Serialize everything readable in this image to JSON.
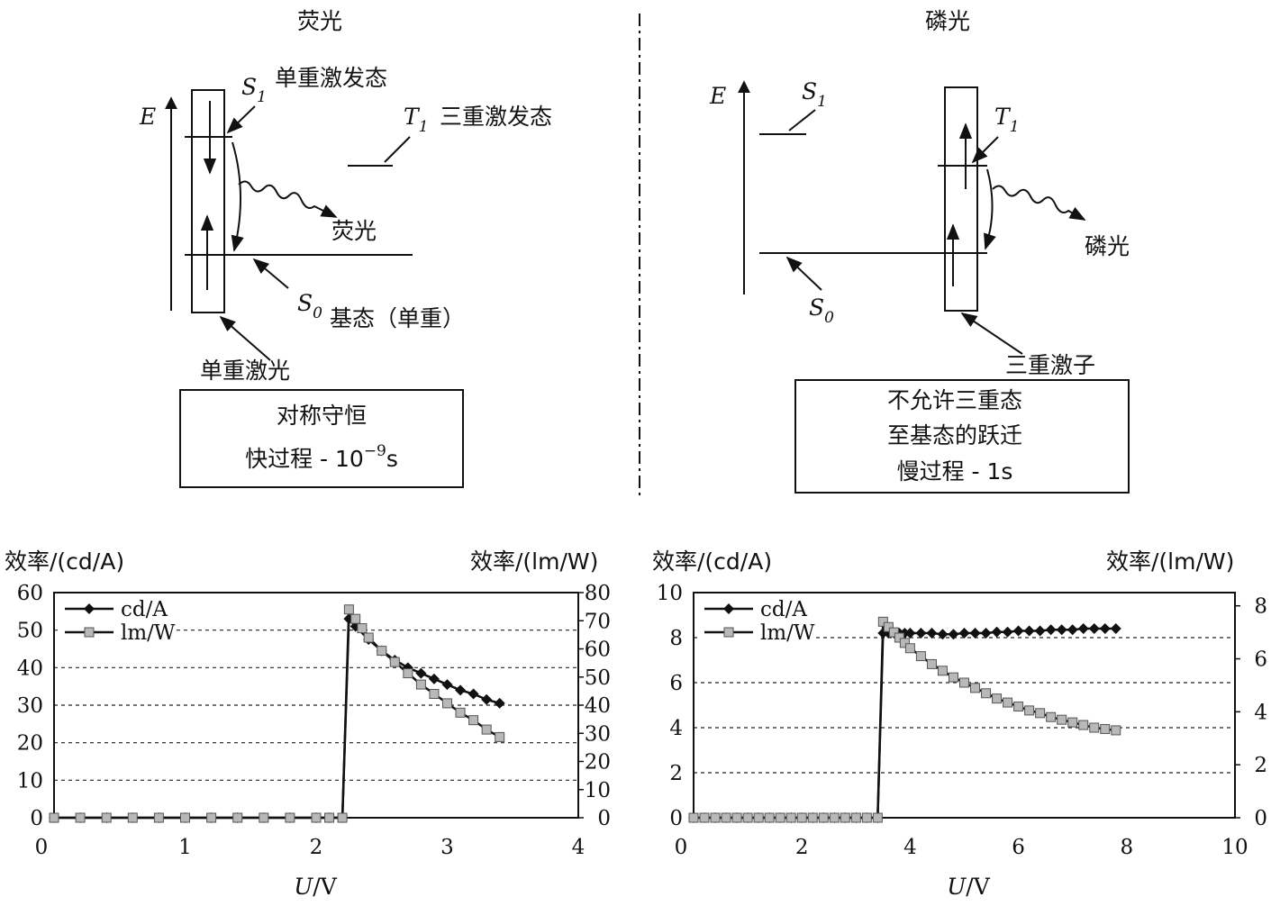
{
  "fluorescence": {
    "title": "荧光",
    "axis_label": "E",
    "s1": {
      "letter": "S",
      "sub": "1"
    },
    "s0": {
      "letter": "S",
      "sub": "0"
    },
    "t1": {
      "letter": "T",
      "sub": "1"
    },
    "singlet_excited": "单重激发态",
    "triplet_excited": "三重激发态",
    "emission": "荧光",
    "ground_state": "基态（单重）",
    "singlet_exciton": "单重激光",
    "box_line1": "对称守恒",
    "box_line2_main": "快过程 - 10",
    "box_line2_exp": "−9",
    "box_line2_unit": "s"
  },
  "phosphorescence": {
    "title": "磷光",
    "axis_label": "E",
    "s1": {
      "letter": "S",
      "sub": "1"
    },
    "s0": {
      "letter": "S",
      "sub": "0"
    },
    "t1": {
      "letter": "T",
      "sub": "1"
    },
    "emission": "磷光",
    "triplet_exciton": "三重激子",
    "box_line1": "不允许三重态",
    "box_line2": "至基态的跃迁",
    "box_line3": "慢过程 - 1s"
  },
  "chart_data": [
    {
      "type": "line",
      "xlabel": "U/V",
      "ylabel": "效率/(cd/A)",
      "y2label": "效率/(lm/W)",
      "xlim": [
        0,
        4
      ],
      "ylim": [
        0,
        60
      ],
      "y2lim": [
        0,
        80
      ],
      "xticks": [
        "0",
        "1",
        "2",
        "3",
        "4"
      ],
      "yticks": [
        "0",
        "10",
        "20",
        "30",
        "40",
        "50",
        "60"
      ],
      "y2ticks": [
        "0",
        "10",
        "20",
        "30",
        "40",
        "50",
        "60",
        "70",
        "80"
      ],
      "grid": "horizontal-dashed",
      "legend": "top-left",
      "series": [
        {
          "name": "cd/A",
          "axis": "left",
          "marker": "diamond",
          "x": [
            0,
            0.2,
            0.4,
            0.6,
            0.8,
            1.0,
            1.2,
            1.4,
            1.6,
            1.8,
            2.0,
            2.1,
            2.2,
            2.25,
            2.3,
            2.4,
            2.5,
            2.6,
            2.7,
            2.8,
            2.9,
            3.0,
            3.1,
            3.2,
            3.3,
            3.4
          ],
          "values": [
            0,
            0,
            0,
            0,
            0,
            0,
            0,
            0,
            0,
            0,
            0,
            0,
            0,
            53,
            51,
            47.5,
            44.5,
            42,
            40,
            38.5,
            37,
            35.5,
            34,
            33,
            31.5,
            30.5
          ]
        },
        {
          "name": "lm/W",
          "axis": "left",
          "marker": "square",
          "x": [
            0,
            0.2,
            0.4,
            0.6,
            0.8,
            1.0,
            1.2,
            1.4,
            1.6,
            1.8,
            2.0,
            2.1,
            2.2,
            2.25,
            2.3,
            2.35,
            2.4,
            2.5,
            2.6,
            2.7,
            2.8,
            2.9,
            3.0,
            3.1,
            3.2,
            3.3,
            3.4
          ],
          "values": [
            0,
            0,
            0,
            0,
            0,
            0,
            0,
            0,
            0,
            0,
            0,
            0,
            0,
            55.5,
            53,
            50.5,
            48,
            44.5,
            41.5,
            38.5,
            35.5,
            33,
            30.5,
            28,
            26,
            23.5,
            21.5
          ]
        }
      ]
    },
    {
      "type": "line",
      "xlabel": "U/V",
      "ylabel": "效率/(cd/A)",
      "y2label": "效率/(lm/W)",
      "xlim": [
        0,
        10
      ],
      "ylim": [
        0,
        10
      ],
      "y2lim": [
        0,
        8.5
      ],
      "xticks": [
        "0",
        "2",
        "4",
        "6",
        "8",
        "10"
      ],
      "yticks": [
        "0",
        "2",
        "4",
        "6",
        "8",
        "10"
      ],
      "y2ticks": [
        "0",
        "2",
        "4",
        "6",
        "8"
      ],
      "grid": "horizontal-dashed",
      "legend": "top-left",
      "series": [
        {
          "name": "cd/A",
          "axis": "left",
          "marker": "diamond",
          "x": [
            0,
            0.2,
            0.4,
            0.6,
            0.8,
            1.0,
            1.2,
            1.4,
            1.6,
            1.8,
            2.0,
            2.2,
            2.4,
            2.6,
            2.8,
            3.0,
            3.2,
            3.4,
            3.5,
            3.6,
            3.7,
            3.8,
            3.9,
            4.0,
            4.2,
            4.4,
            4.6,
            4.8,
            5.0,
            5.2,
            5.4,
            5.6,
            5.8,
            6.0,
            6.2,
            6.4,
            6.6,
            6.8,
            7.0,
            7.2,
            7.4,
            7.6,
            7.8
          ],
          "values": [
            0,
            0,
            0,
            0,
            0,
            0,
            0,
            0,
            0,
            0,
            0,
            0,
            0,
            0,
            0,
            0,
            0,
            0,
            8.2,
            8.2,
            8.2,
            8.2,
            8.2,
            8.2,
            8.2,
            8.2,
            8.15,
            8.15,
            8.2,
            8.2,
            8.2,
            8.25,
            8.25,
            8.3,
            8.3,
            8.3,
            8.35,
            8.35,
            8.35,
            8.4,
            8.4,
            8.4,
            8.4
          ]
        },
        {
          "name": "lm/W",
          "axis": "right",
          "marker": "square",
          "x": [
            0,
            0.2,
            0.4,
            0.6,
            0.8,
            1.0,
            1.2,
            1.4,
            1.6,
            1.8,
            2.0,
            2.2,
            2.4,
            2.6,
            2.8,
            3.0,
            3.2,
            3.4,
            3.5,
            3.6,
            3.7,
            3.8,
            3.9,
            4.0,
            4.2,
            4.4,
            4.6,
            4.8,
            5.0,
            5.2,
            5.4,
            5.6,
            5.8,
            6.0,
            6.2,
            6.4,
            6.6,
            6.8,
            7.0,
            7.2,
            7.4,
            7.6,
            7.8
          ],
          "values": [
            0,
            0,
            0,
            0,
            0,
            0,
            0,
            0,
            0,
            0,
            0,
            0,
            0,
            0,
            0,
            0,
            0,
            0,
            7.4,
            7.2,
            7.0,
            6.8,
            6.6,
            6.4,
            6.1,
            5.8,
            5.55,
            5.3,
            5.1,
            4.9,
            4.7,
            4.5,
            4.35,
            4.2,
            4.05,
            3.95,
            3.8,
            3.7,
            3.6,
            3.5,
            3.4,
            3.35,
            3.3
          ]
        }
      ]
    }
  ]
}
